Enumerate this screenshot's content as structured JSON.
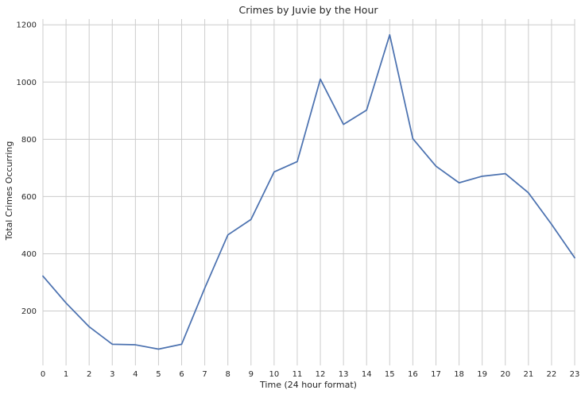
{
  "chart_data": {
    "type": "line",
    "title": "Crimes by Juvie by the Hour",
    "xlabel": "Time (24 hour format)",
    "ylabel": "Total Crimes Occurring",
    "x": [
      0,
      1,
      2,
      3,
      4,
      5,
      6,
      7,
      8,
      9,
      10,
      11,
      12,
      13,
      14,
      15,
      16,
      17,
      18,
      19,
      20,
      21,
      22,
      23
    ],
    "series": [
      {
        "values": [
          322,
          228,
          145,
          84,
          82,
          67,
          84,
          280,
          466,
          520,
          686,
          722,
          1010,
          852,
          902,
          1165,
          802,
          706,
          648,
          671,
          680,
          613,
          503,
          386
        ]
      }
    ],
    "xlim": [
      0,
      23
    ],
    "ylim": [
      10,
      1220
    ],
    "xticks": [
      "0",
      "1",
      "2",
      "3",
      "4",
      "5",
      "6",
      "7",
      "8",
      "9",
      "10",
      "11",
      "12",
      "13",
      "14",
      "15",
      "16",
      "17",
      "18",
      "19",
      "20",
      "21",
      "22",
      "23"
    ],
    "yticks": [
      200,
      400,
      600,
      800,
      1000,
      1200
    ],
    "grid": true,
    "line_color": "#4c72b0",
    "grid_color": "#cccccc"
  }
}
